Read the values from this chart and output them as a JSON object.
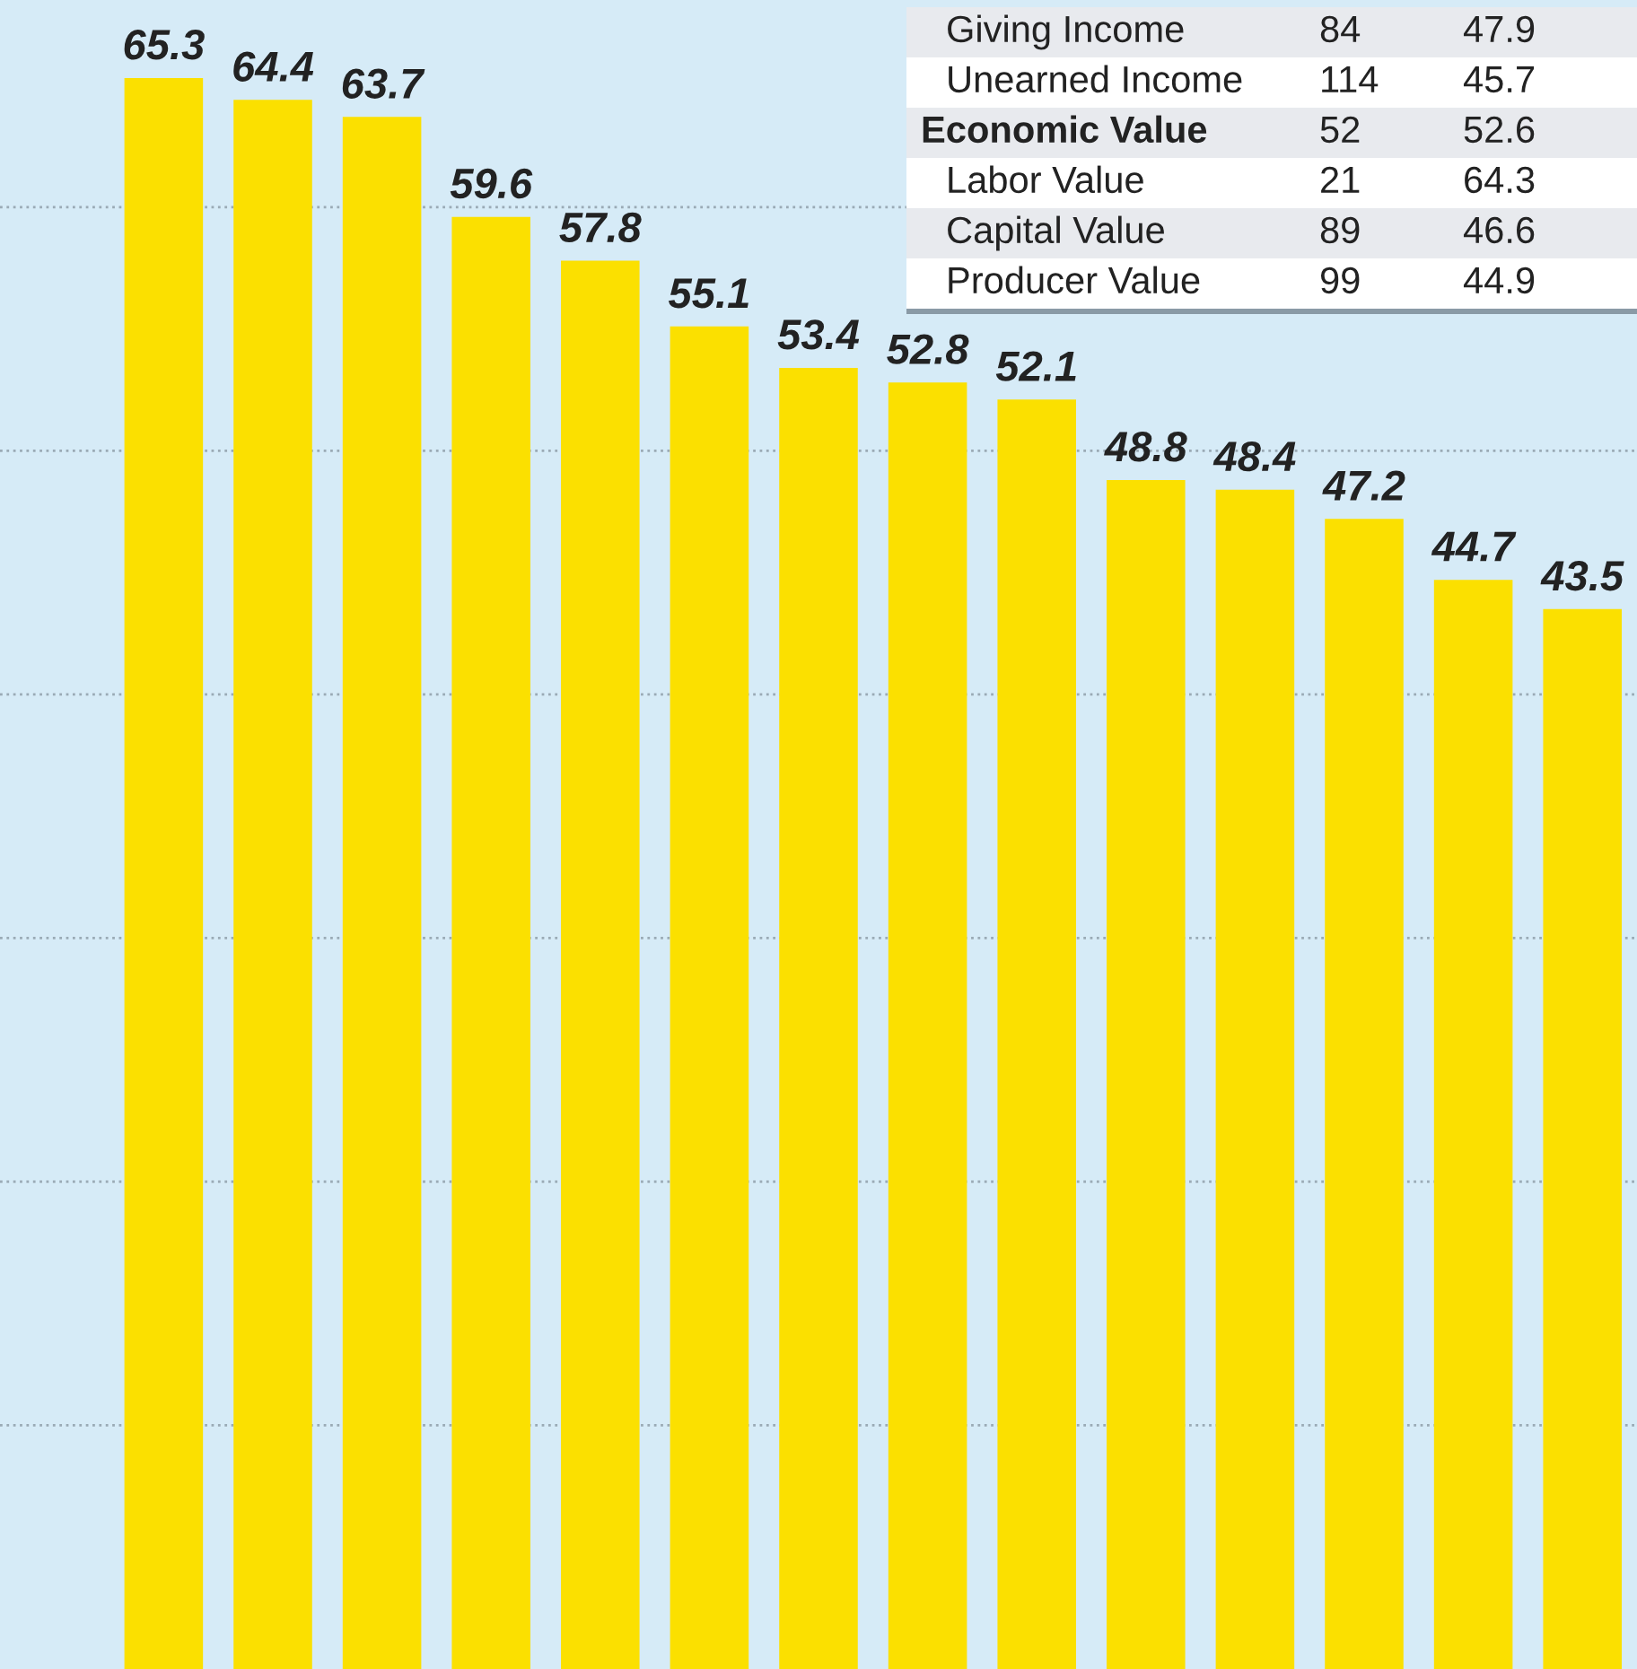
{
  "chart_data": {
    "type": "bar",
    "categories": [
      null,
      null,
      null,
      null,
      null,
      null,
      null,
      null,
      null,
      null,
      null,
      null,
      null,
      null
    ],
    "values": [
      65.3,
      64.4,
      63.7,
      59.6,
      57.8,
      55.1,
      53.4,
      52.8,
      52.1,
      48.8,
      48.4,
      47.2,
      44.7,
      43.5
    ],
    "color": "#fbe000",
    "data_labels": true,
    "ylim": [
      0,
      68.5
    ],
    "yticks": [
      {
        "value": 10,
        "label": null
      },
      {
        "value": 20,
        "label": null
      },
      {
        "value": 30,
        "label": null
      },
      {
        "value": 40,
        "label": null
      },
      {
        "value": 50,
        "label": null
      },
      {
        "value": 60,
        "label": null
      }
    ],
    "grid": "y",
    "annotations": [
      "Giving Income",
      "84",
      "47.9",
      "Unearned Income",
      "114",
      "45.7",
      "Economic Value",
      "52",
      "52.6",
      "Labor Value",
      "21",
      "64.3",
      "Capital Value",
      "89",
      "46.6",
      "Producer Value",
      "99",
      "44.9"
    ]
  }
}
